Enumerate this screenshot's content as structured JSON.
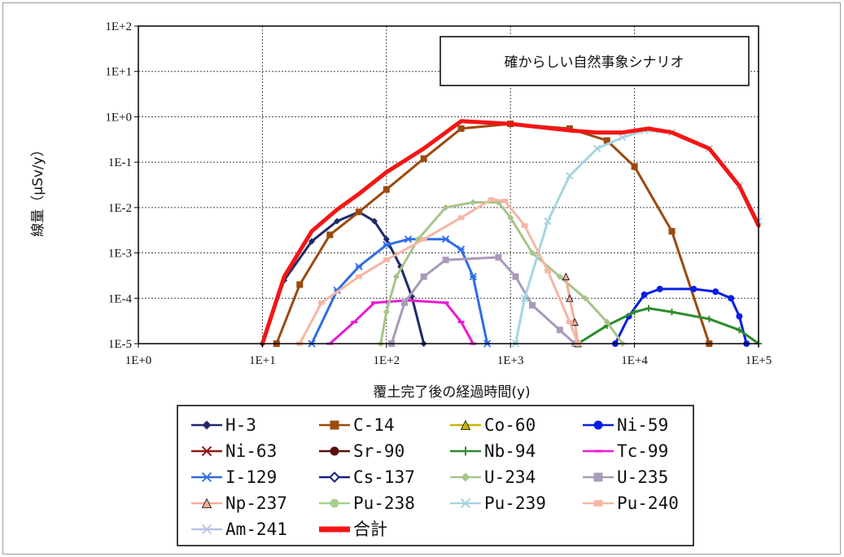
{
  "chart_data": {
    "type": "line",
    "title": "",
    "annotation": "確からしい自然事象シナリオ",
    "xlabel": "覆土完了後の経過時間(y)",
    "ylabel": "線量（μSv/y）",
    "x_scale": "log",
    "y_scale": "log",
    "xlim": [
      1,
      100000
    ],
    "ylim": [
      1e-05,
      100
    ],
    "grid": true,
    "x_ticks": [
      "1E+0",
      "1E+1",
      "1E+2",
      "1E+3",
      "1E+4",
      "1E+5"
    ],
    "y_ticks": [
      "1E-5",
      "1E-4",
      "1E-3",
      "1E-2",
      "1E-1",
      "1E+0",
      "1E+1",
      "1E+2"
    ],
    "legend_position": "bottom",
    "series": [
      {
        "name": "H-3",
        "color": "#1f2a6b",
        "marker": "diamond",
        "points": [
          [
            10,
            1e-05
          ],
          [
            15,
            0.00025
          ],
          [
            25,
            0.0018
          ],
          [
            40,
            0.005
          ],
          [
            60,
            0.008
          ],
          [
            80,
            0.005
          ],
          [
            100,
            0.002
          ],
          [
            130,
            0.0005
          ],
          [
            160,
            0.00011
          ],
          [
            200,
            1e-05
          ]
        ]
      },
      {
        "name": "C-14",
        "color": "#9c4a0e",
        "marker": "square",
        "points": [
          [
            13,
            1e-05
          ],
          [
            20,
            0.0002
          ],
          [
            35,
            0.0025
          ],
          [
            60,
            0.008
          ],
          [
            100,
            0.025
          ],
          [
            200,
            0.12
          ],
          [
            400,
            0.55
          ],
          [
            1000,
            0.7
          ],
          [
            3000,
            0.55
          ],
          [
            6000,
            0.3
          ],
          [
            10000,
            0.08
          ],
          [
            20000,
            0.003
          ],
          [
            40000,
            1e-05
          ]
        ]
      },
      {
        "name": "Co-60",
        "color": "#c9b400",
        "marker": "triangle",
        "points": []
      },
      {
        "name": "Ni-59",
        "color": "#0a1ee6",
        "marker": "circle",
        "points": [
          [
            7000,
            1e-05
          ],
          [
            9000,
            4e-05
          ],
          [
            12000,
            0.00012
          ],
          [
            16000,
            0.00016
          ],
          [
            30000,
            0.00016
          ],
          [
            45000,
            0.00014
          ],
          [
            60000,
            0.0001
          ],
          [
            70000,
            4e-05
          ],
          [
            80000,
            1e-05
          ]
        ]
      },
      {
        "name": "Ni-63",
        "color": "#8b1a1a",
        "marker": "x",
        "points": []
      },
      {
        "name": "Sr-90",
        "color": "#5a0f0f",
        "marker": "circle",
        "points": []
      },
      {
        "name": "Nb-94",
        "color": "#2e8b2e",
        "marker": "plus",
        "points": [
          [
            3500,
            1e-05
          ],
          [
            6000,
            2.5e-05
          ],
          [
            10000,
            5e-05
          ],
          [
            13000,
            6e-05
          ],
          [
            20000,
            5e-05
          ],
          [
            40000,
            3.5e-05
          ],
          [
            70000,
            2e-05
          ],
          [
            100000,
            1e-05
          ]
        ]
      },
      {
        "name": "Tc-99",
        "color": "#e81ad6",
        "marker": "dash",
        "points": [
          [
            35,
            1e-05
          ],
          [
            55,
            3e-05
          ],
          [
            80,
            8e-05
          ],
          [
            150,
            9e-05
          ],
          [
            300,
            8e-05
          ],
          [
            400,
            3e-05
          ],
          [
            500,
            1e-05
          ]
        ]
      },
      {
        "name": "I-129",
        "color": "#2f6de6",
        "marker": "star",
        "points": [
          [
            25,
            1e-05
          ],
          [
            40,
            0.00015
          ],
          [
            60,
            0.0005
          ],
          [
            100,
            0.0015
          ],
          [
            150,
            0.002
          ],
          [
            300,
            0.002
          ],
          [
            400,
            0.0012
          ],
          [
            500,
            0.0003
          ],
          [
            650,
            1e-05
          ]
        ]
      },
      {
        "name": "Cs-137",
        "color": "#1a237e",
        "marker": "diamond-open",
        "points": []
      },
      {
        "name": "U-234",
        "color": "#a7c48a",
        "marker": "diamond",
        "points": [
          [
            90,
            1e-05
          ],
          [
            100,
            5e-05
          ],
          [
            120,
            0.0003
          ],
          [
            180,
            0.002
          ],
          [
            300,
            0.01
          ],
          [
            500,
            0.013
          ],
          [
            800,
            0.013
          ],
          [
            1000,
            0.006
          ],
          [
            1500,
            0.001
          ],
          [
            2500,
            0.0003
          ],
          [
            4000,
            0.0001
          ],
          [
            6000,
            3e-05
          ],
          [
            8000,
            1e-05
          ]
        ]
      },
      {
        "name": "U-235",
        "color": "#a99ab8",
        "marker": "square",
        "points": [
          [
            110,
            1e-05
          ],
          [
            140,
            8e-05
          ],
          [
            200,
            0.0003
          ],
          [
            300,
            0.0007
          ],
          [
            800,
            0.0008
          ],
          [
            1100,
            0.0003
          ],
          [
            1500,
            7e-05
          ],
          [
            2500,
            2e-05
          ],
          [
            3300,
            1e-05
          ]
        ]
      },
      {
        "name": "Np-237",
        "color": "#f2ad9a",
        "marker": "triangle",
        "points": [
          [
            2800,
            0.0003
          ],
          [
            3000,
            0.0001
          ],
          [
            3300,
            3e-05
          ],
          [
            3500,
            1e-05
          ]
        ]
      },
      {
        "name": "Pu-238",
        "color": "#a9cf8f",
        "marker": "circle",
        "points": []
      },
      {
        "name": "Pu-239",
        "color": "#a8d4e0",
        "marker": "x",
        "points": [
          [
            1100,
            1e-05
          ],
          [
            1300,
            0.0001
          ],
          [
            2000,
            0.005
          ],
          [
            3000,
            0.05
          ],
          [
            5000,
            0.2
          ],
          [
            8000,
            0.35
          ],
          [
            12000,
            0.5
          ],
          [
            20000,
            0.45
          ],
          [
            40000,
            0.2
          ],
          [
            70000,
            0.03
          ],
          [
            100000,
            0.005
          ]
        ]
      },
      {
        "name": "Pu-240",
        "color": "#f4b7a3",
        "marker": "rect",
        "points": [
          [
            20,
            1e-05
          ],
          [
            30,
            8e-05
          ],
          [
            60,
            0.0003
          ],
          [
            100,
            0.0007
          ],
          [
            200,
            0.002
          ],
          [
            400,
            0.006
          ],
          [
            700,
            0.015
          ],
          [
            900,
            0.014
          ],
          [
            1300,
            0.004
          ],
          [
            2000,
            0.0004
          ],
          [
            3000,
            3e-05
          ],
          [
            3500,
            1e-05
          ]
        ]
      },
      {
        "name": "Am-241",
        "color": "#b6c3e6",
        "marker": "star",
        "points": []
      },
      {
        "name": "合計",
        "color": "#f41515",
        "marker": "thick",
        "points": [
          [
            10,
            1e-05
          ],
          [
            15,
            0.0003
          ],
          [
            25,
            0.003
          ],
          [
            40,
            0.009
          ],
          [
            60,
            0.02
          ],
          [
            100,
            0.06
          ],
          [
            200,
            0.2
          ],
          [
            400,
            0.8
          ],
          [
            1000,
            0.7
          ],
          [
            3000,
            0.5
          ],
          [
            5000,
            0.45
          ],
          [
            8000,
            0.45
          ],
          [
            13000,
            0.55
          ],
          [
            20000,
            0.45
          ],
          [
            40000,
            0.2
          ],
          [
            70000,
            0.03
          ],
          [
            100000,
            0.004
          ]
        ]
      }
    ]
  }
}
